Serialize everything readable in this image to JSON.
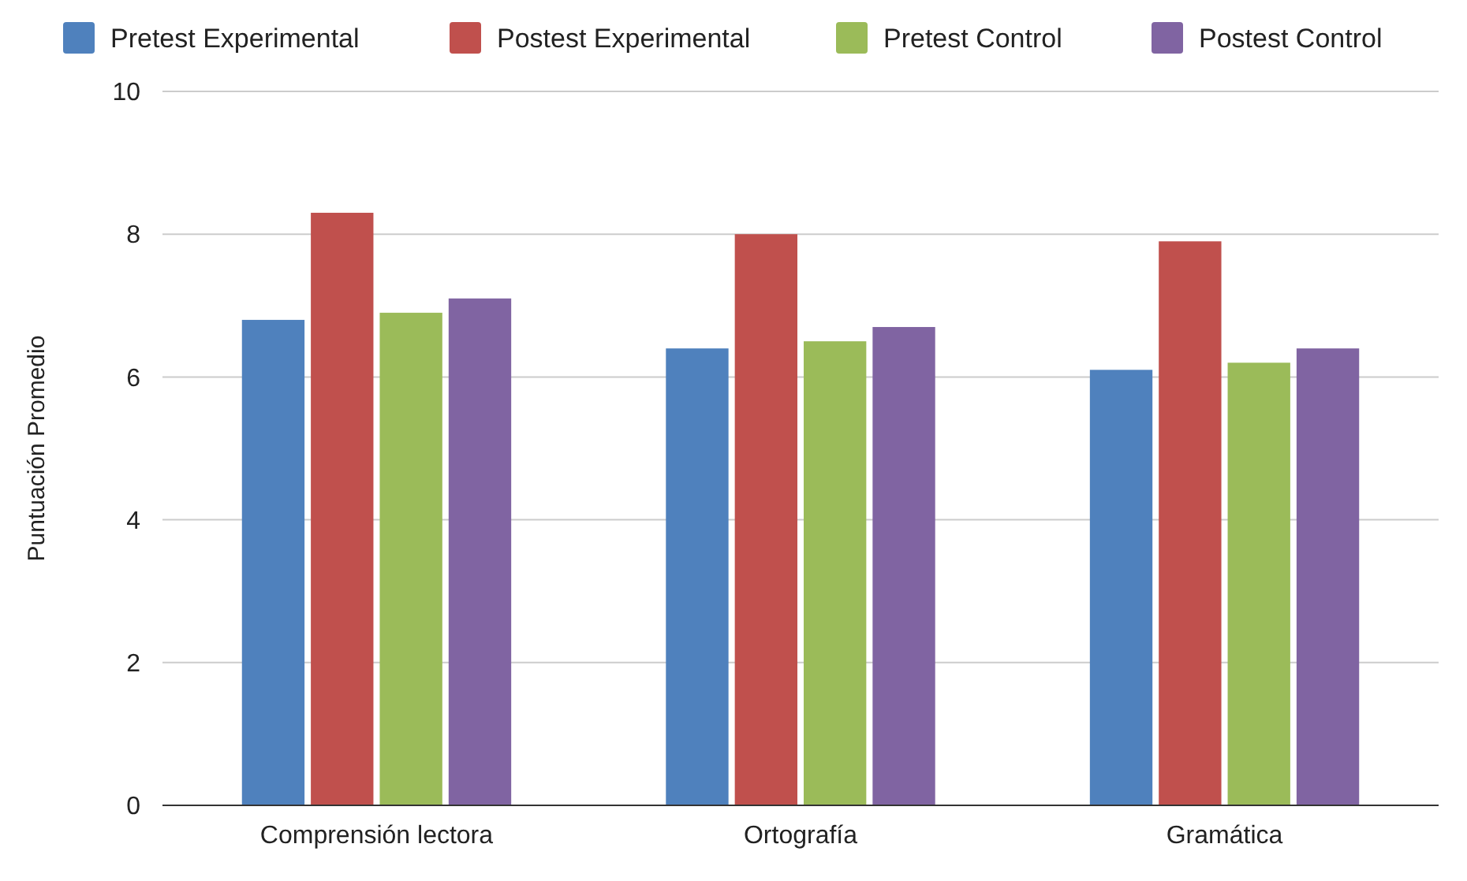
{
  "chart_data": {
    "type": "bar",
    "ylabel": "Puntuación Promedio",
    "categories": [
      "Comprensión lectora",
      "Ortografía",
      "Gramática"
    ],
    "series": [
      {
        "name": "Pretest Experimental",
        "color": "#4f81bd",
        "values": [
          6.8,
          6.4,
          6.1
        ]
      },
      {
        "name": "Postest Experimental",
        "color": "#c0504d",
        "values": [
          8.3,
          8.0,
          7.9
        ]
      },
      {
        "name": "Pretest Control",
        "color": "#9bbb59",
        "values": [
          6.9,
          6.5,
          6.2
        ]
      },
      {
        "name": "Postest Control",
        "color": "#8064a2",
        "values": [
          7.1,
          6.7,
          6.4
        ]
      }
    ],
    "ylim": [
      0,
      10
    ],
    "yticks": [
      0,
      2,
      4,
      6,
      8,
      10
    ],
    "grid": "y",
    "legend": "top"
  }
}
